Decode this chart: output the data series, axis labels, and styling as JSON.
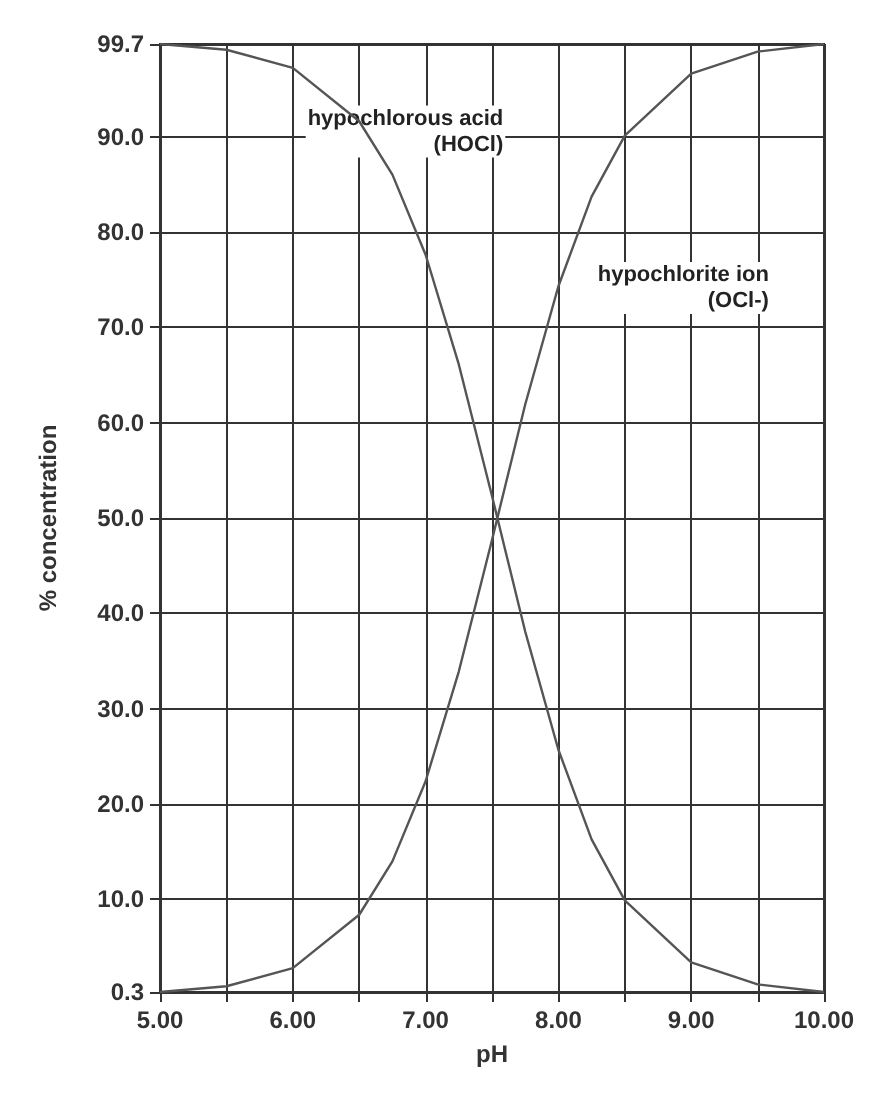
{
  "chart_data": {
    "type": "line",
    "xlabel": "pH",
    "ylabel": "% concentration",
    "x": [
      5,
      5.5,
      6,
      6.5,
      6.75,
      7,
      7.25,
      7.5,
      7.75,
      8,
      8.25,
      8.5,
      9,
      9.5,
      10
    ],
    "series": [
      {
        "color": "#555555",
        "values": [
          99.7,
          99.1,
          97.2,
          91.6,
          86.0,
          77.6,
          66.1,
          52.3,
          38.1,
          25.7,
          16.3,
          9.9,
          3.4,
          1.1,
          0.3
        ]
      },
      {
        "color": "#555555",
        "values": [
          0.3,
          0.9,
          2.8,
          8.4,
          14.0,
          22.4,
          33.9,
          47.7,
          61.9,
          74.3,
          83.7,
          90.1,
          96.6,
          98.9,
          99.7
        ]
      }
    ],
    "xlim": [
      5,
      10
    ],
    "xticks": [
      {
        "value": 5,
        "label": "5.00"
      },
      {
        "value": 5.5,
        "label": null
      },
      {
        "value": 6,
        "label": "6.00"
      },
      {
        "value": 6.5,
        "label": null
      },
      {
        "value": 7,
        "label": "7.00"
      },
      {
        "value": 7.5,
        "label": null
      },
      {
        "value": 8,
        "label": "8.00"
      },
      {
        "value": 8.5,
        "label": null
      },
      {
        "value": 9,
        "label": "9.00"
      },
      {
        "value": 9.5,
        "label": null
      },
      {
        "value": 10,
        "label": "10.00"
      }
    ],
    "ylim": [
      0.3,
      99.7
    ],
    "yticks": [
      {
        "value": 0.3,
        "label": "0.3"
      },
      {
        "value": 10,
        "label": "10.0"
      },
      {
        "value": 20,
        "label": "20.0"
      },
      {
        "value": 30,
        "label": "30.0"
      },
      {
        "value": 40,
        "label": "40.0"
      },
      {
        "value": 50,
        "label": "50.0"
      },
      {
        "value": 60,
        "label": "60.0"
      },
      {
        "value": 70,
        "label": "70.0"
      },
      {
        "value": 80,
        "label": "80.0"
      },
      {
        "value": 90,
        "label": "90.0"
      },
      {
        "value": 99.7,
        "label": "99.7"
      }
    ],
    "grid": true,
    "marker": "none",
    "line_style": "solid",
    "annotations": [
      "hypochlorous acid\n(HOCl)",
      "hypochlorite ion\n(OCl-)"
    ]
  }
}
